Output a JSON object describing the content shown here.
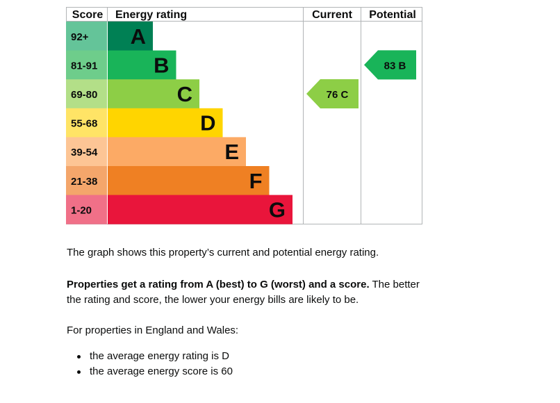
{
  "chart_data": {
    "type": "table",
    "headers": {
      "score": "Score",
      "rating": "Energy rating",
      "current": "Current",
      "potential": "Potential"
    },
    "bands": [
      {
        "letter": "A",
        "range": "92+",
        "min": 92,
        "max": 100,
        "color": "#008054",
        "label_bg": "#64c499"
      },
      {
        "letter": "B",
        "range": "81-91",
        "min": 81,
        "max": 91,
        "color": "#19b459",
        "label_bg": "#6ecd8b"
      },
      {
        "letter": "C",
        "range": "69-80",
        "min": 69,
        "max": 80,
        "color": "#8dce46",
        "label_bg": "#b3df88"
      },
      {
        "letter": "D",
        "range": "55-68",
        "min": 55,
        "max": 68,
        "color": "#ffd500",
        "label_bg": "#ffe466"
      },
      {
        "letter": "E",
        "range": "39-54",
        "min": 39,
        "max": 54,
        "color": "#fcaa65",
        "label_bg": "#fdc595"
      },
      {
        "letter": "F",
        "range": "21-38",
        "min": 21,
        "max": 38,
        "color": "#ef8023",
        "label_bg": "#f4a66b"
      },
      {
        "letter": "G",
        "range": "1-20",
        "min": 1,
        "max": 20,
        "color": "#e9153b",
        "label_bg": "#f07088"
      }
    ],
    "current": {
      "score": 76,
      "letter": "C",
      "text": "76  C"
    },
    "potential": {
      "score": 83,
      "letter": "B",
      "text": "83  B"
    }
  },
  "description": {
    "p1": "The graph shows this property’s current and potential energy rating.",
    "p2_bold": "Properties get a rating from A (best) to G (worst) and a score.",
    "p2_rest": " The better the rating and score, the lower your energy bills are likely to be.",
    "p3": "For properties in England and Wales:",
    "bullets": [
      "the average energy rating is D",
      "the average energy score is 60"
    ]
  }
}
